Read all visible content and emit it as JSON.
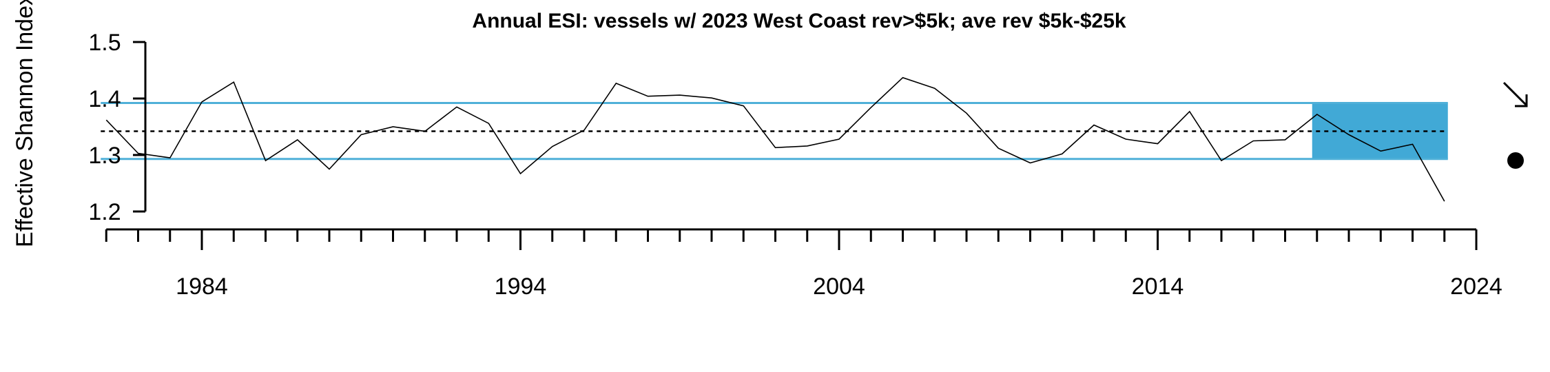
{
  "chart_data": {
    "type": "line",
    "title": "Annual ESI: vessels w/ 2023 West Coast rev>$5k; ave rev $5k-$25k",
    "xlabel": "",
    "ylabel": "Effective Shannon Index",
    "x_ticks": [
      1984,
      1994,
      2004,
      2014,
      2024
    ],
    "x_tick_labels": [
      "1984",
      "1994",
      "2004",
      "2014",
      "2024"
    ],
    "y_ticks": [
      1.2,
      1.3,
      1.4,
      1.5
    ],
    "y_tick_labels": [
      "1.2",
      "1.3",
      "1.4",
      "1.5"
    ],
    "xlim": [
      1981,
      2024
    ],
    "ylim": [
      1.2,
      1.5
    ],
    "series": [
      {
        "x": [
          1981,
          1982,
          1983,
          1984,
          1985,
          1986,
          1987,
          1988,
          1989,
          1990,
          1991,
          1992,
          1993,
          1994,
          1995,
          1996,
          1997,
          1998,
          1999,
          2000,
          2001,
          2002,
          2003,
          2004,
          2005,
          2006,
          2007,
          2008,
          2009,
          2010,
          2011,
          2012,
          2013,
          2014,
          2015,
          2016,
          2017,
          2018,
          2019,
          2020,
          2021,
          2022,
          2023
        ],
        "values": [
          1.362,
          1.303,
          1.295,
          1.394,
          1.429,
          1.29,
          1.327,
          1.275,
          1.336,
          1.35,
          1.342,
          1.385,
          1.356,
          1.267,
          1.315,
          1.344,
          1.427,
          1.404,
          1.406,
          1.401,
          1.387,
          1.313,
          1.316,
          1.328,
          1.384,
          1.437,
          1.418,
          1.374,
          1.312,
          1.286,
          1.302,
          1.353,
          1.328,
          1.32,
          1.377,
          1.29,
          1.325,
          1.327,
          1.372,
          1.336,
          1.307,
          1.319,
          1.218
        ]
      }
    ],
    "mean": 1.342,
    "sd_upper": 1.392,
    "sd_lower": 1.293,
    "recent_window": [
      2019,
      2023
    ],
    "trend_indicator": "down-arrow-icon",
    "mean_indicator": "filled-circle-icon",
    "colors": {
      "line": "#000000",
      "sd_lines": "#4fb0d8",
      "recent_shade": "#41a9d6",
      "mean_line": "#000000"
    }
  }
}
